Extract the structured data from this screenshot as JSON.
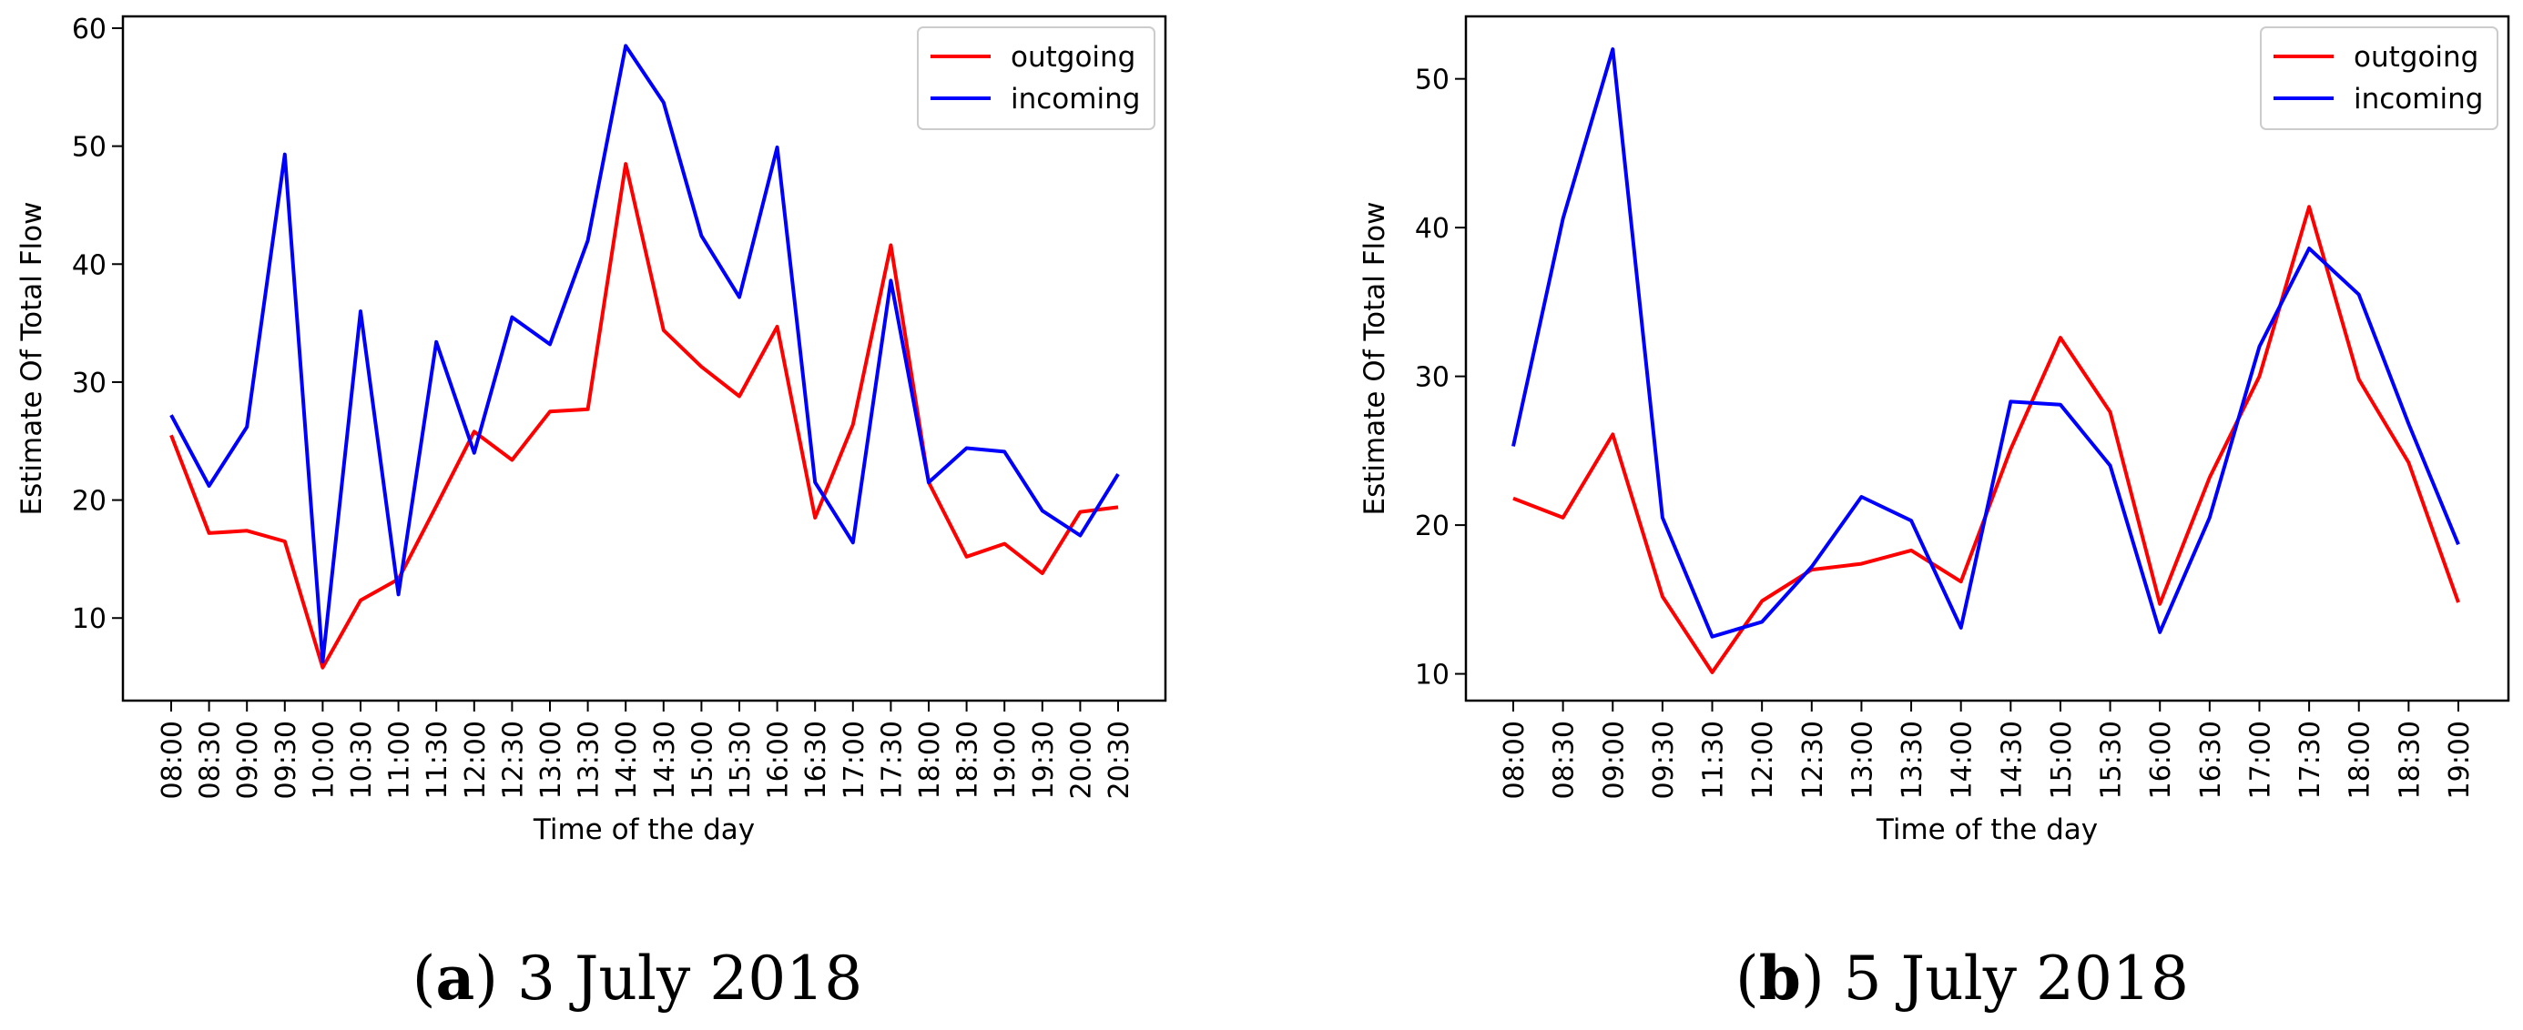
{
  "chart_data": [
    {
      "type": "line",
      "caption_letter": "a",
      "caption_text": " 3 July 2018",
      "title": "",
      "xlabel": "Time of the day",
      "ylabel": "Estimate Of Total Flow",
      "ylim": [
        3,
        61
      ],
      "yticks": [
        10,
        20,
        30,
        40,
        50,
        60
      ],
      "categories": [
        "08:00",
        "08:30",
        "09:00",
        "09:30",
        "10:00",
        "10:30",
        "11:00",
        "11:30",
        "12:00",
        "12:30",
        "13:00",
        "13:30",
        "14:00",
        "14:30",
        "15:00",
        "15:30",
        "16:00",
        "16:30",
        "17:00",
        "17:30",
        "18:00",
        "18:30",
        "19:00",
        "19:30",
        "20:00",
        "20:30"
      ],
      "legend_position": "top-right",
      "series": [
        {
          "name": "outgoing",
          "color": "#ff0000",
          "values": [
            25.5,
            17.2,
            17.4,
            16.5,
            5.8,
            11.5,
            13.3,
            19.5,
            25.8,
            23.4,
            27.5,
            27.7,
            48.5,
            34.4,
            31.3,
            28.8,
            34.7,
            18.5,
            26.4,
            41.6,
            21.5,
            15.2,
            16.3,
            13.8,
            19.0,
            19.4
          ]
        },
        {
          "name": "incoming",
          "color": "#0000ff",
          "values": [
            27.2,
            21.2,
            26.2,
            49.3,
            6.3,
            36.0,
            12.0,
            33.4,
            24.0,
            35.5,
            33.2,
            42.0,
            58.5,
            53.7,
            42.4,
            37.2,
            49.9,
            21.5,
            16.4,
            38.6,
            21.5,
            24.4,
            24.1,
            19.1,
            17.0,
            22.2
          ]
        }
      ]
    },
    {
      "type": "line",
      "caption_letter": "b",
      "caption_text": " 5 July 2018",
      "title": "",
      "xlabel": "Time of the day",
      "ylabel": "Estimate Of Total Flow",
      "ylim": [
        8.2,
        54.2
      ],
      "yticks": [
        10,
        20,
        30,
        40,
        50
      ],
      "categories": [
        "08:00",
        "08:30",
        "09:00",
        "09:30",
        "11:30",
        "12:00",
        "12:30",
        "13:00",
        "13:30",
        "14:00",
        "14:30",
        "15:00",
        "15:30",
        "16:00",
        "16:30",
        "17:00",
        "17:30",
        "18:00",
        "18:30",
        "19:00"
      ],
      "legend_position": "top-right",
      "series": [
        {
          "name": "outgoing",
          "color": "#ff0000",
          "values": [
            21.8,
            20.5,
            26.1,
            15.2,
            10.1,
            14.9,
            17.0,
            17.4,
            18.3,
            16.2,
            25.1,
            32.6,
            27.6,
            14.7,
            23.2,
            30.0,
            41.4,
            29.8,
            24.2,
            14.8
          ]
        },
        {
          "name": "incoming",
          "color": "#0000ff",
          "values": [
            25.3,
            40.6,
            52.0,
            20.5,
            12.5,
            13.5,
            17.2,
            21.9,
            20.3,
            13.1,
            28.3,
            28.1,
            24.0,
            12.8,
            20.5,
            32.0,
            38.6,
            35.5,
            26.8,
            18.7
          ]
        }
      ]
    }
  ]
}
